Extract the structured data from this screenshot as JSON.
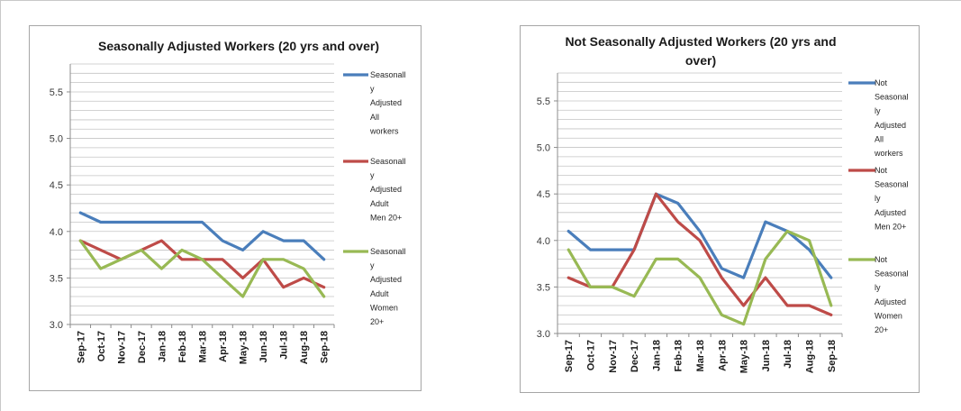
{
  "chart_data": [
    {
      "type": "line",
      "title": "Seasonally Adjusted Workers (20 yrs and over)",
      "categories": [
        "Sep-17",
        "Oct-17",
        "Nov-17",
        "Dec-17",
        "Jan-18",
        "Feb-18",
        "Mar-18",
        "Apr-18",
        "May-18",
        "Jun-18",
        "Jul-18",
        "Aug-18",
        "Sep-18"
      ],
      "ylim": [
        3.0,
        5.8
      ],
      "yticks": [
        "3.0",
        "3.5",
        "4.0",
        "4.5",
        "5.0",
        "5.5"
      ],
      "grid": true,
      "legend_position": "right",
      "series": [
        {
          "name": "Seasonally Adjusted All workers",
          "legend_lines": [
            "Seasonall",
            "y",
            "Adjusted",
            "All",
            "workers"
          ],
          "color": "#4a7ebb",
          "values": [
            4.2,
            4.1,
            4.1,
            4.1,
            4.1,
            4.1,
            4.1,
            3.9,
            3.8,
            4.0,
            3.9,
            3.9,
            3.7
          ]
        },
        {
          "name": "Seasonally Adjusted Adult Men 20+",
          "legend_lines": [
            "Seasonall",
            "y",
            "Adjusted",
            "Adult",
            "Men 20+"
          ],
          "color": "#be4b48",
          "values": [
            3.9,
            3.8,
            3.7,
            3.8,
            3.9,
            3.7,
            3.7,
            3.7,
            3.5,
            3.7,
            3.4,
            3.5,
            3.4
          ]
        },
        {
          "name": "Seasonally Adjusted Adult Women 20+",
          "legend_lines": [
            "Seasonall",
            "y",
            "Adjusted",
            "Adult",
            "Women",
            "20+"
          ],
          "color": "#98b954",
          "values": [
            3.9,
            3.6,
            3.7,
            3.8,
            3.6,
            3.8,
            3.7,
            3.5,
            3.3,
            3.7,
            3.7,
            3.6,
            3.3
          ]
        }
      ]
    },
    {
      "type": "line",
      "title": "Not Seasonally Adjusted Workers (20 yrs and over)",
      "title_lines": [
        "Not Seasonally Adjusted Workers (20 yrs and",
        "over)"
      ],
      "categories": [
        "Sep-17",
        "Oct-17",
        "Nov-17",
        "Dec-17",
        "Jan-18",
        "Feb-18",
        "Mar-18",
        "Apr-18",
        "May-18",
        "Jun-18",
        "Jul-18",
        "Aug-18",
        "Sep-18"
      ],
      "ylim": [
        3.0,
        5.8
      ],
      "yticks": [
        "3.0",
        "3.5",
        "4.0",
        "4.5",
        "5.0",
        "5.5"
      ],
      "grid": true,
      "legend_position": "right",
      "series": [
        {
          "name": "Not Seasonally Adjusted All workers",
          "legend_lines": [
            "Not",
            "Seasonal",
            "ly",
            "Adjusted",
            "All",
            "workers"
          ],
          "color": "#4a7ebb",
          "values": [
            4.1,
            3.9,
            3.9,
            3.9,
            4.5,
            4.4,
            4.1,
            3.7,
            3.6,
            4.2,
            4.1,
            3.9,
            3.6
          ]
        },
        {
          "name": "Not Seasonally Adjusted Men 20+",
          "legend_lines": [
            "Not",
            "Seasonal",
            "ly",
            "Adjusted",
            "Men 20+"
          ],
          "color": "#be4b48",
          "values": [
            3.6,
            3.5,
            3.5,
            3.9,
            4.5,
            4.2,
            4.0,
            3.6,
            3.3,
            3.6,
            3.3,
            3.3,
            3.2
          ]
        },
        {
          "name": "Not Seasonally Adjusted Women 20+",
          "legend_lines": [
            "Not",
            "Seasonal",
            "ly",
            "Adjusted",
            "Women",
            "20+"
          ],
          "color": "#98b954",
          "values": [
            3.9,
            3.5,
            3.5,
            3.4,
            3.8,
            3.8,
            3.6,
            3.2,
            3.1,
            3.8,
            4.1,
            4.0,
            3.3
          ]
        }
      ]
    }
  ]
}
